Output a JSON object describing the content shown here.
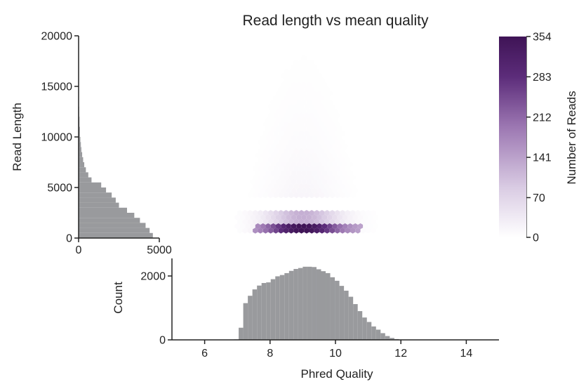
{
  "chart_data": {
    "type": "hexbin",
    "title": "Read length vs mean quality",
    "colors": {
      "hist": "#999a9d",
      "cmap_low": "#ffffff",
      "cmap_high": "#3f1456",
      "axis": "#222222"
    },
    "main": {
      "xlim": [
        5,
        15
      ],
      "ylim": [
        0,
        20000
      ],
      "ylabel": "Read Length",
      "yticks": [
        "0",
        "5000",
        "10000",
        "15000",
        "20000"
      ],
      "yticks_values": [
        0,
        5000,
        10000,
        15000,
        20000
      ],
      "density_regions": [
        {
          "x": [
            7,
            12.2
          ],
          "y": [
            4000,
            19000
          ],
          "level": 0.05
        },
        {
          "x": [
            7,
            12.2
          ],
          "y": [
            300,
            2900
          ],
          "level": 0.35
        },
        {
          "x": [
            7.5,
            10.8
          ],
          "y": [
            300,
            1300
          ],
          "level": 1.0
        }
      ]
    },
    "colorbar": {
      "label": "Number of Reads",
      "min": 0,
      "max": 354,
      "ticks": [
        "0",
        "70",
        "141",
        "212",
        "283",
        "354"
      ],
      "ticks_values": [
        0,
        70,
        141,
        212,
        283,
        354
      ]
    },
    "left_hist": {
      "xlim": [
        0,
        5000
      ],
      "xticks": [
        "0",
        "5000"
      ],
      "xticks_values": [
        0,
        5000
      ],
      "bin_edges": [
        0,
        500,
        1000,
        1500,
        2000,
        2500,
        3000,
        3500,
        4000,
        4500,
        5000,
        5500,
        6000,
        6500,
        7000,
        7500,
        8000,
        8500,
        9000,
        9500,
        10000,
        11000,
        12000,
        13000,
        14000,
        15000
      ],
      "counts": [
        4600,
        4400,
        4150,
        3800,
        3450,
        3000,
        2500,
        2300,
        2050,
        1700,
        1400,
        800,
        600,
        450,
        350,
        280,
        220,
        170,
        140,
        110,
        80,
        55,
        35,
        20,
        10
      ]
    },
    "bottom_hist": {
      "xlim": [
        5,
        15
      ],
      "ylabel": "Count",
      "xlabel": "Phred Quality",
      "xticks": [
        "6",
        "8",
        "10",
        "12",
        "14"
      ],
      "xticks_values": [
        6,
        8,
        10,
        12,
        14
      ],
      "yticks": [
        "0",
        "2000"
      ],
      "yticks_values": [
        0,
        2000
      ],
      "ymax": 2550,
      "bin_start": 6.9,
      "bin_width": 0.14,
      "counts": [
        15,
        380,
        1150,
        1380,
        1580,
        1700,
        1780,
        1800,
        1900,
        1990,
        2030,
        2090,
        2160,
        2220,
        2250,
        2290,
        2290,
        2280,
        2210,
        2150,
        2090,
        1960,
        1850,
        1690,
        1540,
        1350,
        1120,
        900,
        700,
        560,
        420,
        320,
        210,
        120,
        60,
        25,
        10,
        5
      ]
    }
  }
}
